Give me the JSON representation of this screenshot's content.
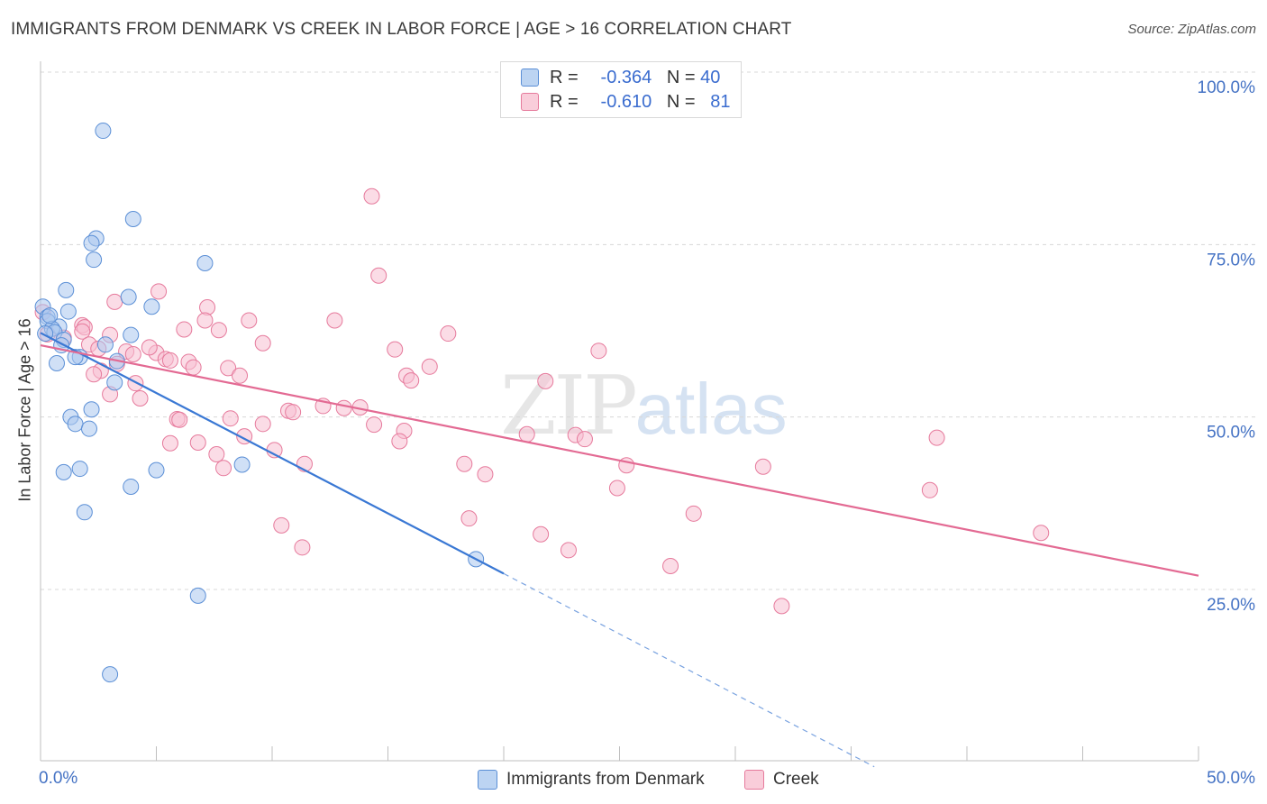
{
  "header": {
    "title": "IMMIGRANTS FROM DENMARK VS CREEK IN LABOR FORCE | AGE > 16 CORRELATION CHART",
    "source": "Source: ZipAtlas.com"
  },
  "legend": {
    "series1": {
      "r_label": "R =",
      "r_value": "-0.364",
      "n_label": "N =",
      "n_value": "40"
    },
    "series2": {
      "r_label": "R =",
      "r_value": "-0.610",
      "n_label": "N =",
      "n_value": "81"
    }
  },
  "watermark": {
    "zip": "ZIP",
    "atlas": "atlas"
  },
  "chart_data": {
    "type": "scatter",
    "title": "IMMIGRANTS FROM DENMARK VS CREEK IN LABOR FORCE | AGE > 16 CORRELATION CHART",
    "xlabel": "",
    "ylabel": "In Labor Force | Age > 16",
    "xlim": [
      0,
      50
    ],
    "ylim": [
      0,
      105
    ],
    "x_tick_labels": [
      "0.0%",
      "50.0%"
    ],
    "y_ticks": [
      25,
      50,
      75,
      100
    ],
    "y_tick_labels": [
      "25.0%",
      "50.0%",
      "75.0%",
      "100.0%"
    ],
    "grid": true,
    "colors": {
      "series1": "#5b8fd6",
      "series2": "#e67a9c",
      "tick_label": "#4472c4"
    },
    "series": [
      {
        "name": "Immigrants from Denmark",
        "color": "#a9c7ee",
        "edge": "#5b8fd6",
        "trend": {
          "x0": 0,
          "y0": 62.2,
          "x1": 20,
          "y1": 27.3,
          "dash_to_x": 36,
          "dash_to_y": -0.7
        },
        "points": [
          [
            2.7,
            91.5
          ],
          [
            4.0,
            78.7
          ],
          [
            2.4,
            75.9
          ],
          [
            2.2,
            75.2
          ],
          [
            2.3,
            72.8
          ],
          [
            7.1,
            72.3
          ],
          [
            1.1,
            68.4
          ],
          [
            3.8,
            67.4
          ],
          [
            4.8,
            66.0
          ],
          [
            0.1,
            66.0
          ],
          [
            1.2,
            65.3
          ],
          [
            0.3,
            64.5
          ],
          [
            0.3,
            63.9
          ],
          [
            0.8,
            63.1
          ],
          [
            0.5,
            62.8
          ],
          [
            0.6,
            62.3
          ],
          [
            3.9,
            61.9
          ],
          [
            1.0,
            61.2
          ],
          [
            2.8,
            60.5
          ],
          [
            0.9,
            60.4
          ],
          [
            1.7,
            58.7
          ],
          [
            1.5,
            58.7
          ],
          [
            0.7,
            57.8
          ],
          [
            3.3,
            58.1
          ],
          [
            3.2,
            55.0
          ],
          [
            2.2,
            51.1
          ],
          [
            1.3,
            50.0
          ],
          [
            1.5,
            49.0
          ],
          [
            2.1,
            48.3
          ],
          [
            8.7,
            43.1
          ],
          [
            1.7,
            42.5
          ],
          [
            5.0,
            42.3
          ],
          [
            1.0,
            42.0
          ],
          [
            3.9,
            39.9
          ],
          [
            1.9,
            36.2
          ],
          [
            18.8,
            29.4
          ],
          [
            6.8,
            24.1
          ],
          [
            3.0,
            12.7
          ],
          [
            0.4,
            64.7
          ],
          [
            0.2,
            62.1
          ]
        ]
      },
      {
        "name": "Creek",
        "color": "#f7c0d2",
        "edge": "#e67a9c",
        "trend": {
          "x0": 0,
          "y0": 60.4,
          "x1": 50,
          "y1": 27.0
        },
        "points": [
          [
            14.3,
            82.0
          ],
          [
            14.6,
            70.5
          ],
          [
            5.1,
            68.2
          ],
          [
            3.2,
            66.7
          ],
          [
            7.2,
            65.9
          ],
          [
            7.1,
            64.0
          ],
          [
            9.0,
            64.0
          ],
          [
            12.7,
            64.0
          ],
          [
            1.8,
            63.3
          ],
          [
            1.9,
            63.0
          ],
          [
            1.8,
            62.4
          ],
          [
            7.7,
            62.6
          ],
          [
            3.0,
            61.9
          ],
          [
            17.6,
            62.1
          ],
          [
            1.0,
            61.5
          ],
          [
            2.1,
            60.5
          ],
          [
            9.6,
            60.7
          ],
          [
            3.7,
            59.5
          ],
          [
            5.0,
            59.3
          ],
          [
            4.7,
            60.1
          ],
          [
            4.0,
            59.1
          ],
          [
            24.1,
            59.6
          ],
          [
            5.4,
            58.4
          ],
          [
            5.6,
            58.2
          ],
          [
            6.4,
            58.0
          ],
          [
            3.3,
            57.7
          ],
          [
            6.6,
            57.2
          ],
          [
            8.1,
            57.1
          ],
          [
            2.6,
            56.7
          ],
          [
            2.3,
            56.2
          ],
          [
            8.6,
            56.0
          ],
          [
            15.8,
            56.0
          ],
          [
            16.0,
            55.3
          ],
          [
            21.8,
            55.2
          ],
          [
            4.1,
            54.9
          ],
          [
            3.0,
            53.3
          ],
          [
            4.3,
            52.7
          ],
          [
            12.2,
            51.6
          ],
          [
            13.1,
            51.3
          ],
          [
            13.8,
            51.4
          ],
          [
            10.7,
            50.9
          ],
          [
            10.9,
            50.7
          ],
          [
            5.9,
            49.7
          ],
          [
            6.0,
            49.6
          ],
          [
            8.2,
            49.8
          ],
          [
            9.6,
            49.0
          ],
          [
            14.4,
            48.9
          ],
          [
            15.7,
            48.0
          ],
          [
            8.8,
            47.2
          ],
          [
            21.0,
            47.5
          ],
          [
            23.1,
            47.4
          ],
          [
            23.5,
            46.8
          ],
          [
            38.7,
            47.0
          ],
          [
            5.6,
            46.2
          ],
          [
            6.8,
            46.3
          ],
          [
            15.5,
            46.5
          ],
          [
            10.1,
            45.2
          ],
          [
            7.6,
            44.6
          ],
          [
            11.4,
            43.2
          ],
          [
            18.3,
            43.2
          ],
          [
            25.3,
            43.0
          ],
          [
            31.2,
            42.8
          ],
          [
            7.9,
            42.6
          ],
          [
            19.2,
            41.7
          ],
          [
            24.9,
            39.7
          ],
          [
            38.4,
            39.4
          ],
          [
            28.2,
            36.0
          ],
          [
            18.5,
            35.3
          ],
          [
            10.4,
            34.3
          ],
          [
            43.2,
            33.2
          ],
          [
            21.6,
            33.0
          ],
          [
            11.3,
            31.1
          ],
          [
            22.8,
            30.7
          ],
          [
            27.2,
            28.4
          ],
          [
            32.0,
            22.6
          ],
          [
            0.1,
            65.2
          ],
          [
            0.3,
            62.0
          ],
          [
            6.2,
            62.7
          ],
          [
            2.5,
            59.9
          ],
          [
            15.3,
            59.8
          ],
          [
            16.8,
            57.3
          ]
        ]
      }
    ]
  }
}
